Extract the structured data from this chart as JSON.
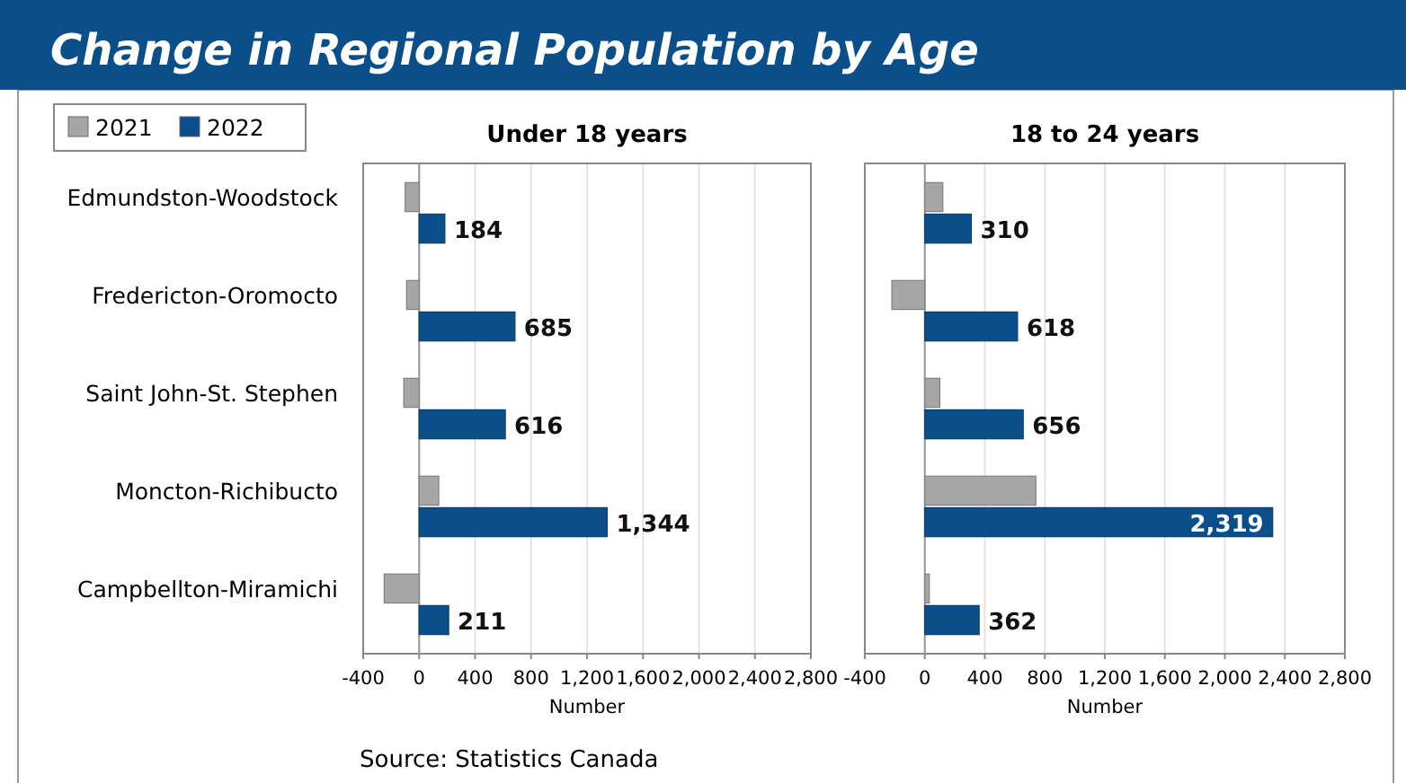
{
  "chart_data": [
    {
      "type": "bar",
      "orientation": "horizontal",
      "title": "Change in Regional Population by Age",
      "subtitle": "Under 18 years",
      "xlabel": "Number",
      "categories": [
        "Edmundston-Woodstock",
        "Fredericton-Oromocto",
        "Saint John-St. Stephen",
        "Moncton-Richibucto",
        "Campbellton-Miramichi"
      ],
      "series": [
        {
          "name": "2021",
          "color": "#a6a6a6",
          "values": [
            -100,
            -90,
            -110,
            140,
            -250
          ]
        },
        {
          "name": "2022",
          "color": "#0b4f8a",
          "values": [
            184,
            685,
            616,
            1344,
            211
          ],
          "value_labels": [
            "184",
            "685",
            "616",
            "1,344",
            "211"
          ]
        }
      ],
      "xlim": [
        -400,
        2800
      ],
      "xticks": [
        -400,
        0,
        400,
        800,
        {
          "value": 1200,
          "label": "1,200"
        },
        {
          "value": 1600,
          "label": "1,600"
        },
        {
          "value": 2000,
          "label": "2,000"
        },
        {
          "value": 2400,
          "label": "2,400"
        },
        {
          "value": 2800,
          "label": "2,800"
        }
      ],
      "grid": "x",
      "legend": "top left",
      "annotations": [
        "Source: Statistics Canada"
      ]
    },
    {
      "type": "bar",
      "orientation": "horizontal",
      "title": "18 to 24 years",
      "xlabel": "Number",
      "categories": [
        null,
        null,
        null,
        null,
        null
      ],
      "series": [
        {
          "color": "#a6a6a6",
          "values": [
            120,
            -220,
            100,
            740,
            30
          ]
        },
        {
          "color": "#0b4f8a",
          "values": [
            310,
            618,
            656,
            2319,
            362
          ],
          "value_labels": [
            "310",
            "618",
            "656",
            "2,319",
            "362"
          ]
        }
      ],
      "xlim": [
        -400,
        2800
      ],
      "xticks": [
        -400,
        0,
        400,
        800,
        {
          "value": 1200,
          "label": "1,200"
        },
        {
          "value": 1600,
          "label": "1,600"
        },
        {
          "value": 2000,
          "label": "2,000"
        },
        {
          "value": 2400,
          "label": "2,400"
        },
        {
          "value": 2800,
          "label": "2,800"
        }
      ],
      "grid": "x"
    }
  ]
}
